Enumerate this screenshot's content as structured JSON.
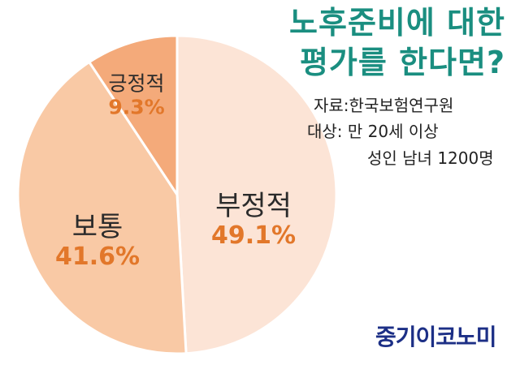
{
  "title": {
    "line1": "노후준비에 대한",
    "line2": "평가를 한다면?"
  },
  "source_text": "자료:한국보험연구원",
  "target_label": "대상: 만 20세 이상",
  "target_cont": "성인 남녀 1200명",
  "brand": "중기이코노미",
  "colors": {
    "negative": "#fce4d6",
    "neutral": "#f9c9a5",
    "positive": "#f4aa7a",
    "outline": "#ffffff",
    "percent": "#e2772a",
    "title": "#1a8e80",
    "brand": "#1c2f86"
  },
  "chart_data": {
    "type": "pie",
    "categories": [
      "부정적",
      "보통",
      "긍정적"
    ],
    "values": [
      49.1,
      41.6,
      9.3
    ],
    "value_labels": [
      "49.1%",
      "41.6%",
      "9.3%"
    ],
    "start": "12 o'clock",
    "direction": "clockwise",
    "legend": "none"
  }
}
